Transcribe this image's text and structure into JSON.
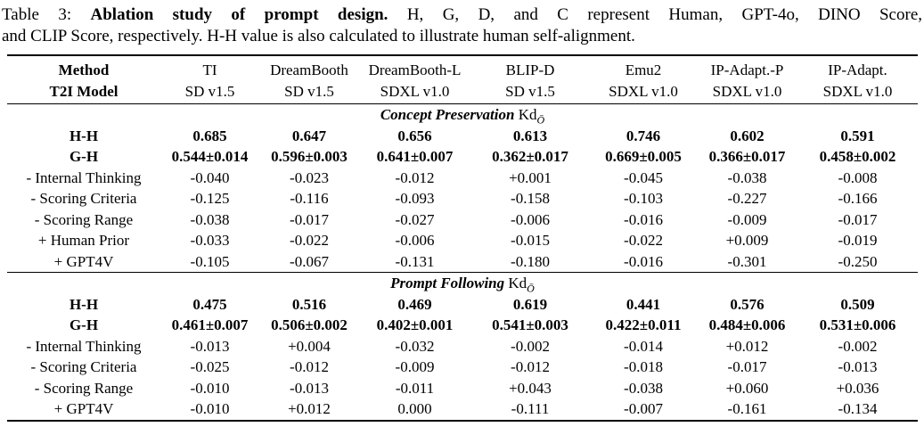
{
  "caption": {
    "prefix": "Table 3: ",
    "bold_title": "Ablation study of prompt design.",
    "line1_rest": " H, G, D, and C represent Human, GPT-4o, DINO Score,",
    "line2": "and CLIP Score, respectively. H-H value is also calculated to illustrate human self-alignment."
  },
  "table": {
    "header": {
      "row1_label": "Method",
      "row2_label": "T2I Model",
      "methods": [
        "TI",
        "DreamBooth",
        "DreamBooth-L",
        "BLIP-D",
        "Emu2",
        "IP-Adapt.-P",
        "IP-Adapt."
      ],
      "models": [
        "SD v1.5",
        "SD v1.5",
        "SDXL v1.0",
        "SD v1.5",
        "SDXL v1.0",
        "SDXL v1.0",
        "SDXL v1.0"
      ]
    },
    "metric_base": "Kd",
    "metric_subscript": "Ō",
    "sections": [
      {
        "title": "Concept Preservation",
        "rows": [
          {
            "label": "H-H",
            "bold": true,
            "values": [
              "0.685",
              "0.647",
              "0.656",
              "0.613",
              "0.746",
              "0.602",
              "0.591"
            ]
          },
          {
            "label": "G-H",
            "bold": true,
            "values": [
              "0.544±0.014",
              "0.596±0.003",
              "0.641±0.007",
              "0.362±0.017",
              "0.669±0.005",
              "0.366±0.017",
              "0.458±0.002"
            ]
          },
          {
            "label": "- Internal Thinking",
            "bold": false,
            "values": [
              "-0.040",
              "-0.023",
              "-0.012",
              "+0.001",
              "-0.045",
              "-0.038",
              "-0.008"
            ]
          },
          {
            "label": "- Scoring Criteria",
            "bold": false,
            "values": [
              "-0.125",
              "-0.116",
              "-0.093",
              "-0.158",
              "-0.103",
              "-0.227",
              "-0.166"
            ]
          },
          {
            "label": "- Scoring Range",
            "bold": false,
            "values": [
              "-0.038",
              "-0.017",
              "-0.027",
              "-0.006",
              "-0.016",
              "-0.009",
              "-0.017"
            ]
          },
          {
            "label": "+ Human Prior",
            "bold": false,
            "values": [
              "-0.033",
              "-0.022",
              "-0.006",
              "-0.015",
              "-0.022",
              "+0.009",
              "-0.019"
            ]
          },
          {
            "label": "+ GPT4V",
            "bold": false,
            "values": [
              "-0.105",
              "-0.067",
              "-0.131",
              "-0.180",
              "-0.016",
              "-0.301",
              "-0.250"
            ]
          }
        ]
      },
      {
        "title": "Prompt Following",
        "rows": [
          {
            "label": "H-H",
            "bold": true,
            "values": [
              "0.475",
              "0.516",
              "0.469",
              "0.619",
              "0.441",
              "0.576",
              "0.509"
            ]
          },
          {
            "label": "G-H",
            "bold": true,
            "values": [
              "0.461±0.007",
              "0.506±0.002",
              "0.402±0.001",
              "0.541±0.003",
              "0.422±0.011",
              "0.484±0.006",
              "0.531±0.006"
            ]
          },
          {
            "label": "- Internal Thinking",
            "bold": false,
            "values": [
              "-0.013",
              "+0.004",
              "-0.032",
              "-0.002",
              "-0.014",
              "+0.012",
              "-0.002"
            ]
          },
          {
            "label": "- Scoring Criteria",
            "bold": false,
            "values": [
              "-0.025",
              "-0.012",
              "-0.009",
              "-0.012",
              "-0.018",
              "-0.017",
              "-0.013"
            ]
          },
          {
            "label": "- Scoring Range",
            "bold": false,
            "values": [
              "-0.010",
              "-0.013",
              "-0.011",
              "+0.043",
              "-0.038",
              "+0.060",
              "+0.036"
            ]
          },
          {
            "label": "+ GPT4V",
            "bold": false,
            "values": [
              "-0.010",
              "+0.012",
              "0.000",
              "-0.111",
              "-0.007",
              "-0.161",
              "-0.134"
            ]
          }
        ]
      }
    ]
  },
  "colors": {
    "text": "#000000",
    "background": "#ffffff",
    "rule": "#000000"
  }
}
